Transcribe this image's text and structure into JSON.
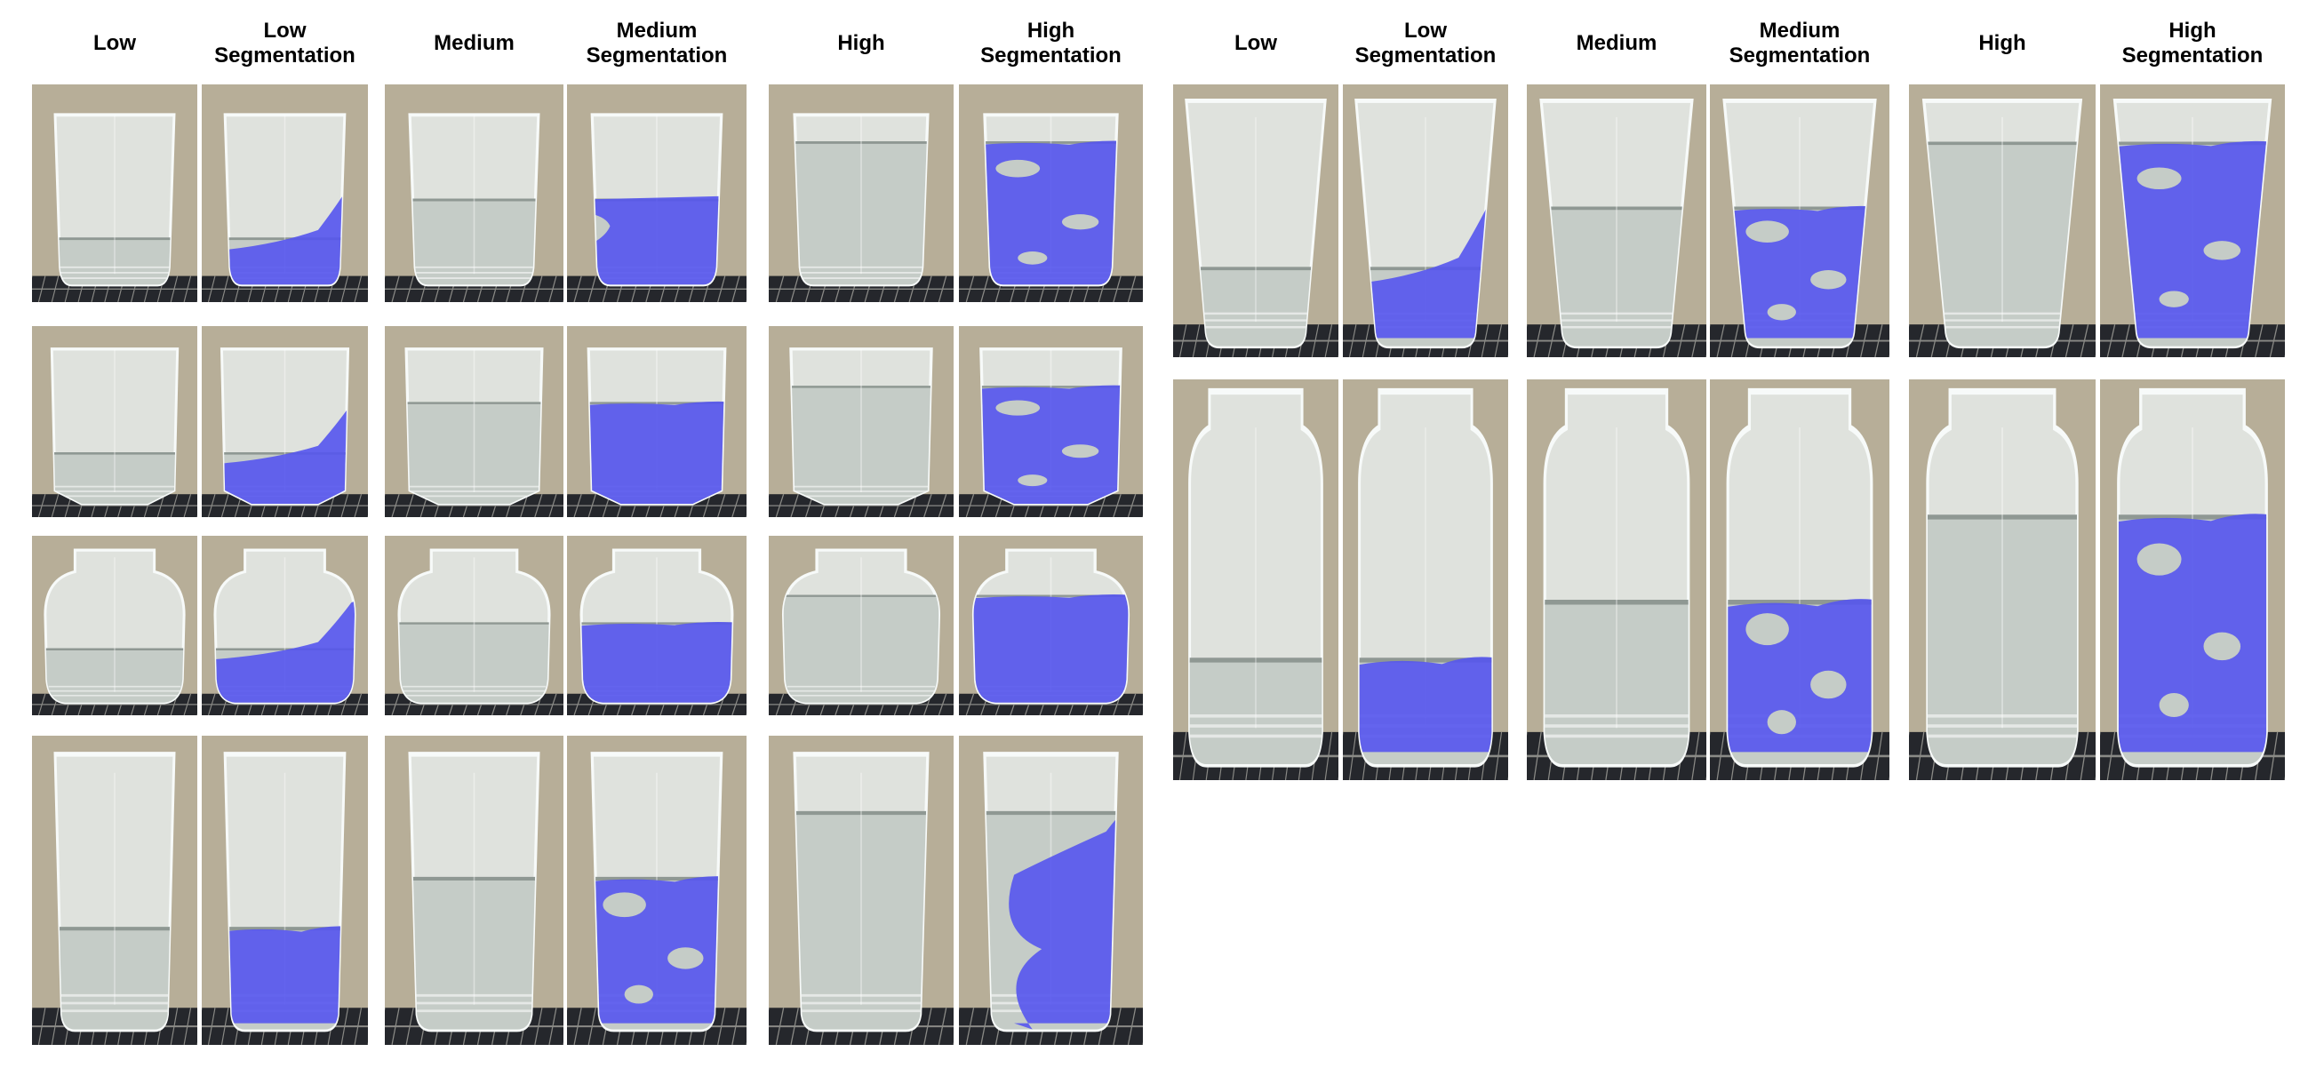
{
  "panels": [
    {
      "name": "left-panel",
      "headers": [
        "Low",
        "Low\nSegmentation",
        "Medium",
        "Medium\nSegmentation",
        "High",
        "High\nSegmentation"
      ],
      "rows": [
        {
          "container": "short-tumbler",
          "fill": {
            "low": 0.26,
            "medium": 0.47,
            "high": 0.78
          },
          "mask_shape": {
            "low": "wedge",
            "medium": "notch",
            "high": "holes"
          }
        },
        {
          "container": "hexagonal-glass",
          "fill": {
            "low": 0.31,
            "medium": 0.62,
            "high": 0.72
          },
          "mask_shape": {
            "low": "wedge",
            "medium": "solid",
            "high": "holes"
          }
        },
        {
          "container": "round-jar",
          "fill": {
            "low": 0.35,
            "medium": 0.52,
            "high": 0.7
          },
          "mask_shape": {
            "low": "wedge",
            "medium": "solid",
            "high": "solid"
          }
        },
        {
          "container": "tall-glass",
          "fill": {
            "low": 0.36,
            "medium": 0.55,
            "high": 0.8
          },
          "mask_shape": {
            "low": "solid",
            "medium": "holes",
            "high": "diagonal"
          }
        }
      ]
    },
    {
      "name": "right-panel",
      "headers": [
        "Low",
        "Low\nSegmentation",
        "Medium",
        "Medium\nSegmentation",
        "High",
        "High\nSegmentation"
      ],
      "rows": [
        {
          "container": "tapered-glass",
          "fill": {
            "low": 0.3,
            "medium": 0.56,
            "high": 0.84
          },
          "mask_shape": {
            "low": "wedge",
            "medium": "holes",
            "high": "holes"
          }
        },
        {
          "container": "tall-jar",
          "fill": {
            "low": 0.27,
            "medium": 0.44,
            "high": 0.69
          },
          "mask_shape": {
            "low": "solid",
            "medium": "holes",
            "high": "holes"
          }
        }
      ]
    }
  ],
  "colors": {
    "background": "#b7ae98",
    "rack": "#25272c",
    "glass": "#e6ebe9",
    "water": "#c5ccc7",
    "mask": "#5555ee"
  }
}
